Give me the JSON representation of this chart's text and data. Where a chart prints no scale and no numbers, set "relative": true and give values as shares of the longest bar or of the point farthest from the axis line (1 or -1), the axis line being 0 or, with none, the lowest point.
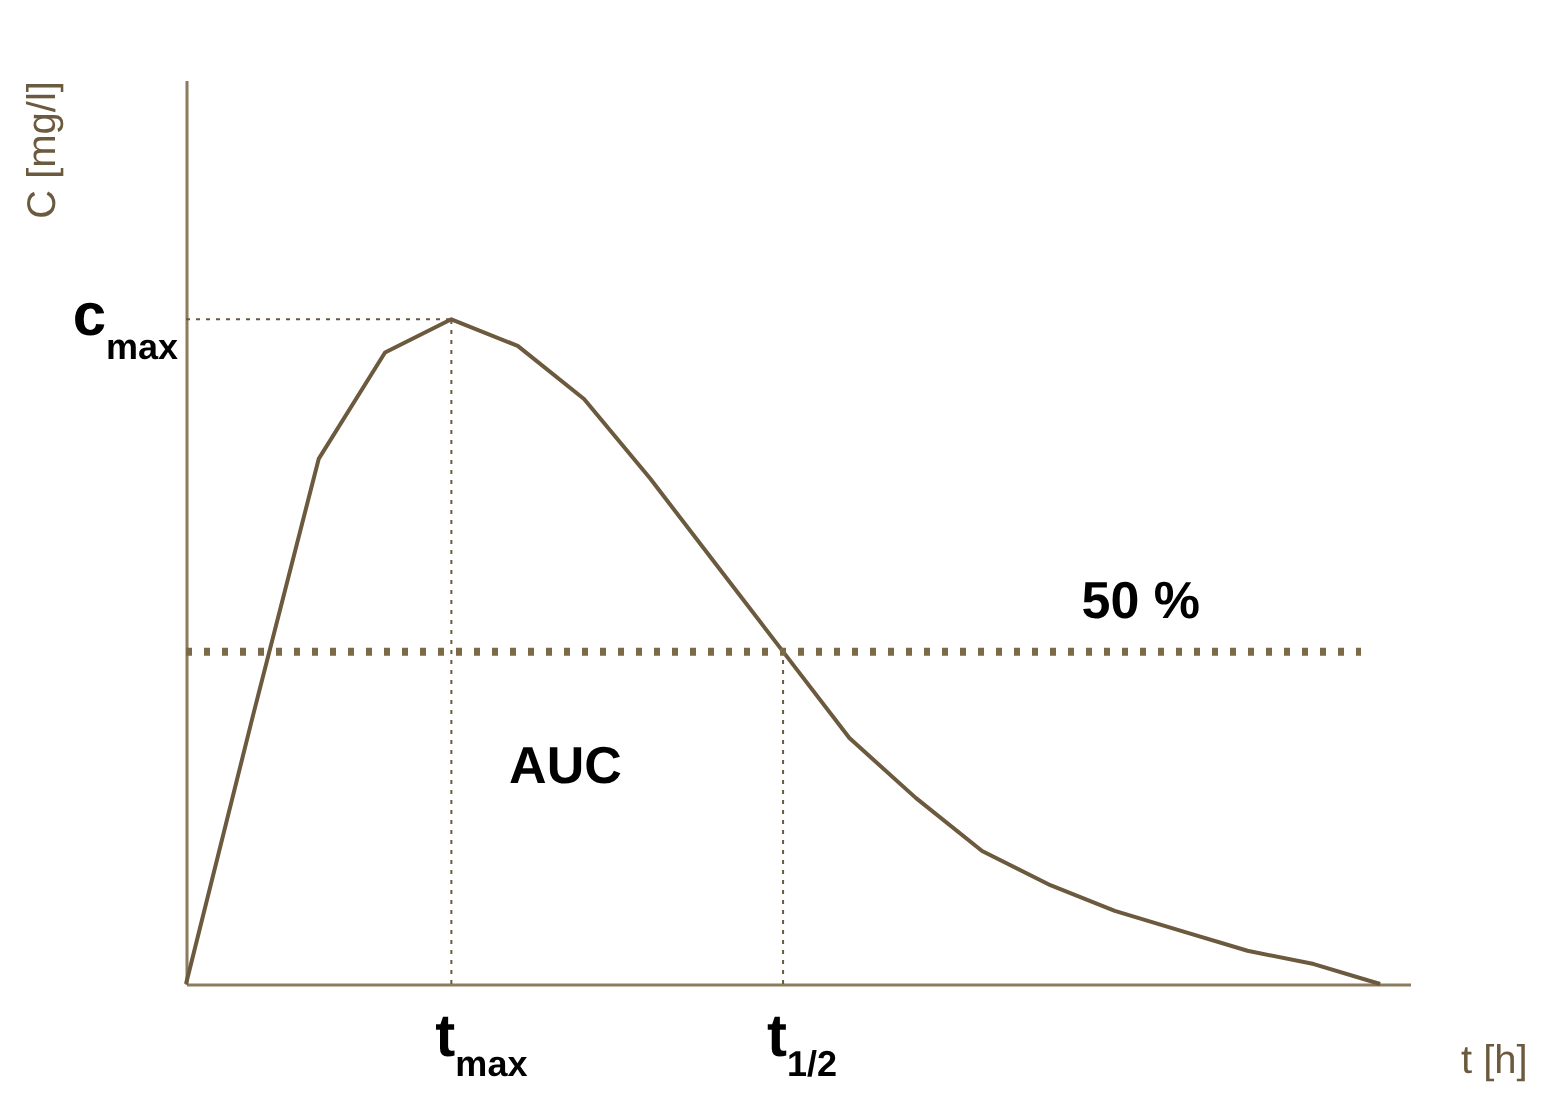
{
  "chart_data": {
    "type": "line",
    "relative": true,
    "xlabel": "t [h]",
    "ylabel": "C [mg/l]",
    "categories": [
      null,
      null,
      null,
      null,
      "t$_{max}$",
      null,
      null,
      null,
      null,
      "t$_{1/2}$",
      null,
      null,
      null,
      null,
      null,
      null,
      null,
      null,
      null
    ],
    "series": [
      {
        "color": "#6b5a3e",
        "values": [
          0,
          0.4,
          0.79,
          0.95,
          1,
          0.96,
          0.88,
          0.76,
          0.63,
          0.5,
          0.37,
          0.28,
          0.2,
          0.15,
          0.11,
          0.08,
          0.05,
          0.03,
          0
        ]
      }
    ],
    "ref_lines": [
      {
        "axis": "y",
        "value": 1,
        "label": "c$_{max}$",
        "color": "#6b5a3e",
        "line_style": "dotted"
      },
      {
        "axis": "y",
        "value": 0.5,
        "label": "50 %",
        "color": "#7a6a48",
        "line_style": "dotted"
      }
    ],
    "annotations": [
      "AUC"
    ],
    "grid": false,
    "line_style": "solid",
    "marker": "none"
  }
}
